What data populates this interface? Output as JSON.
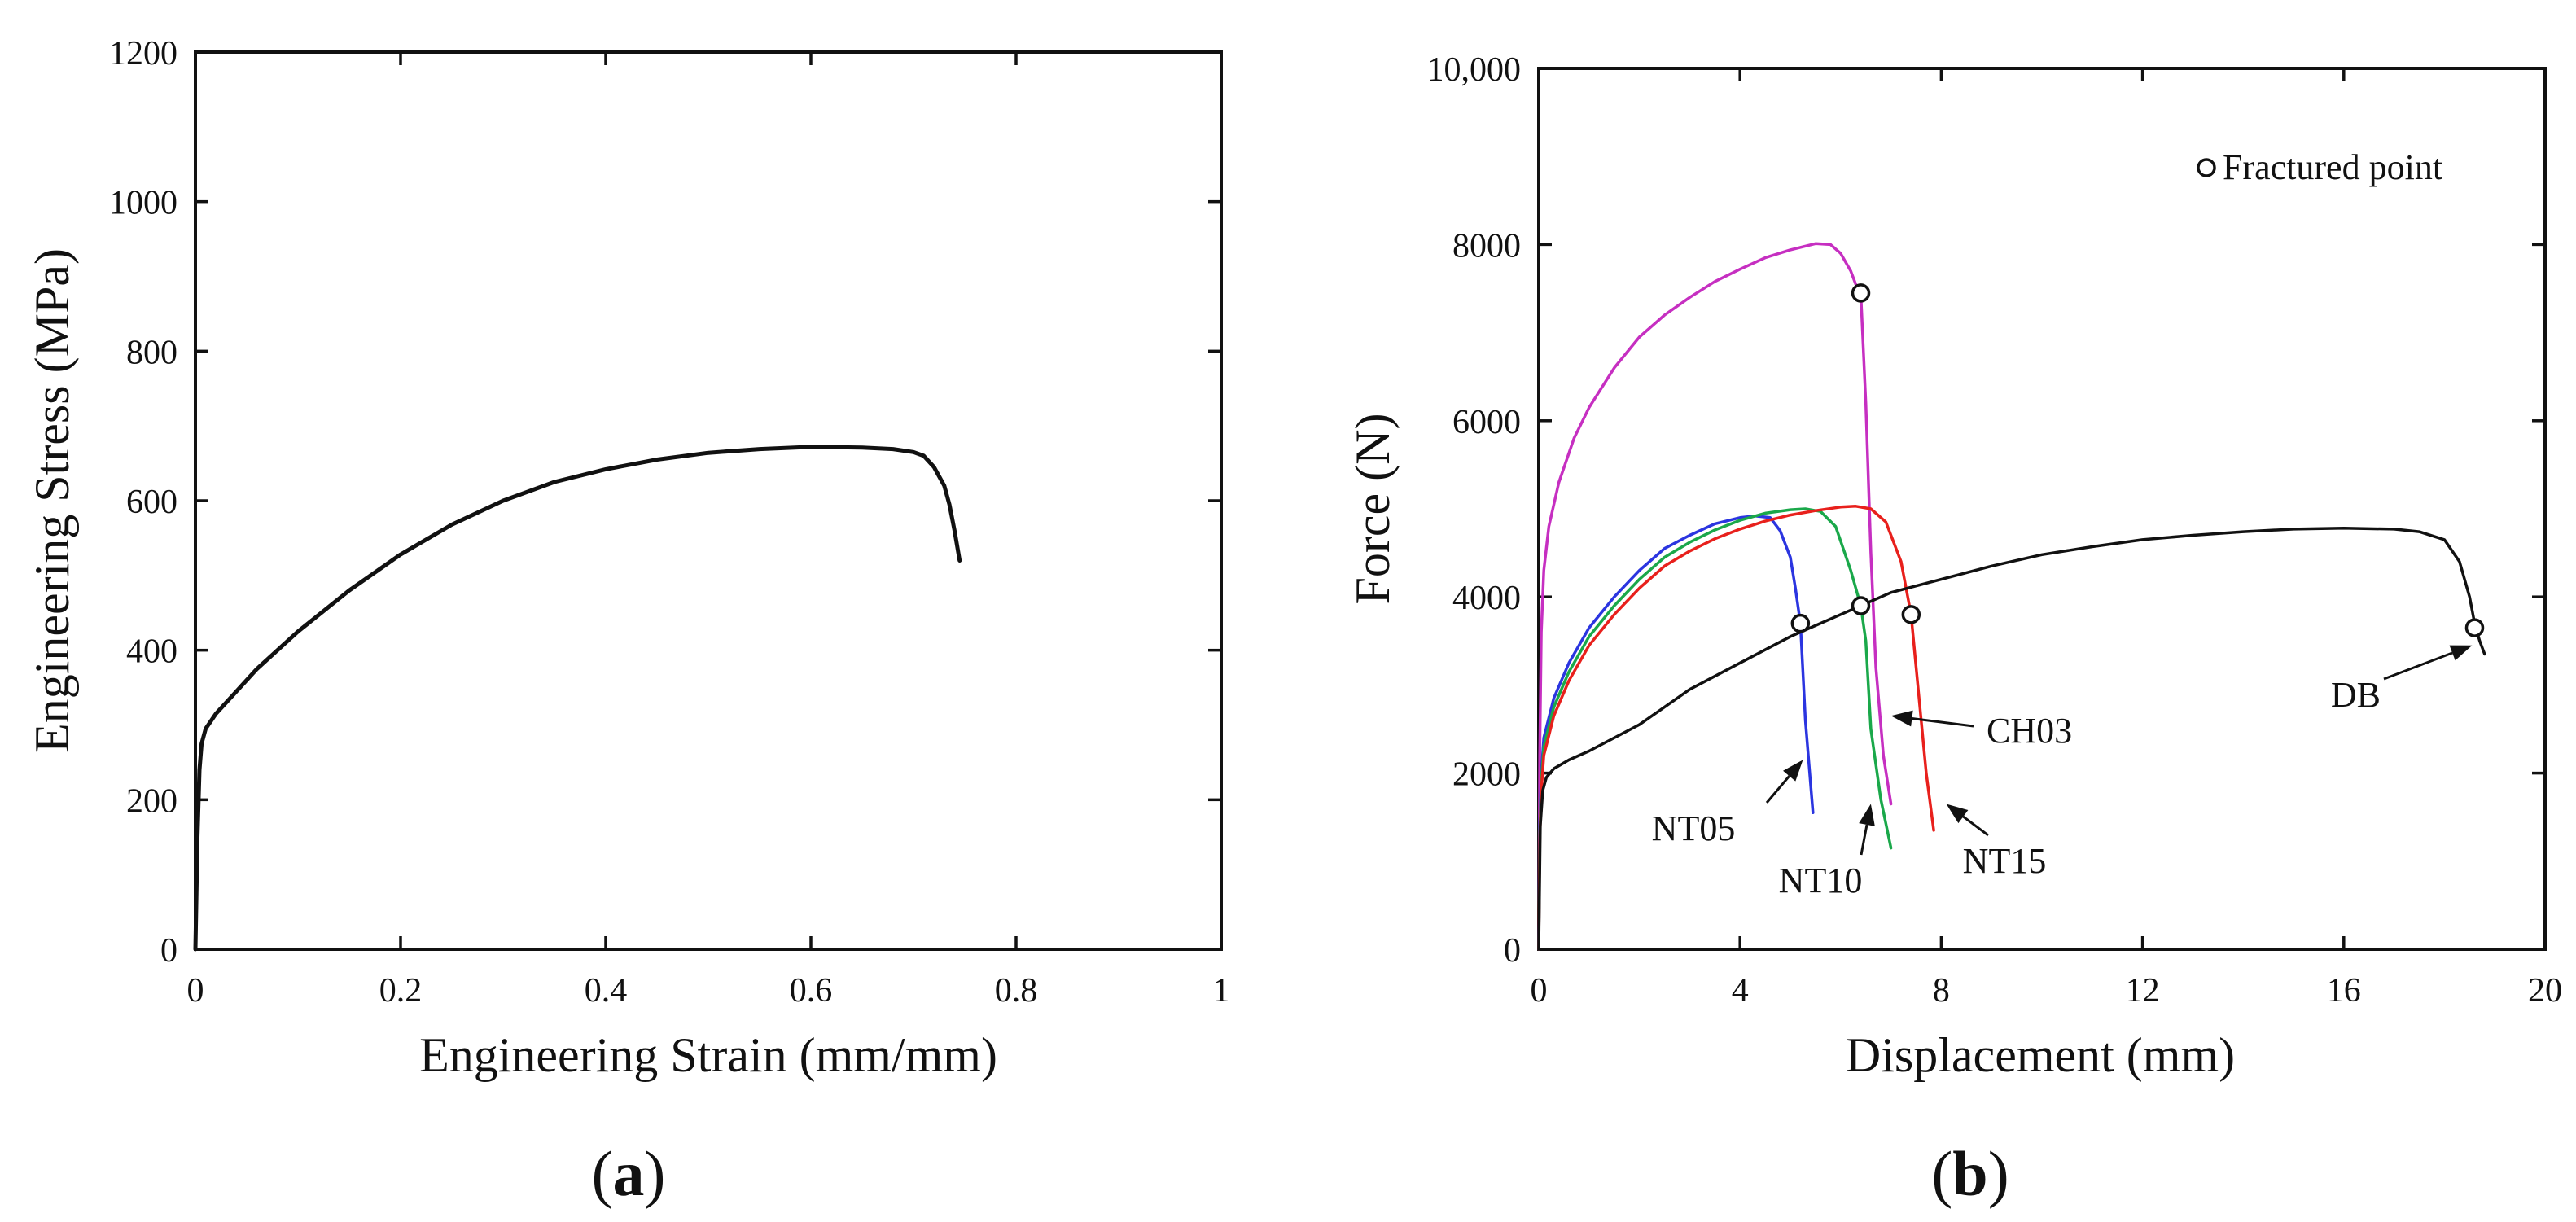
{
  "chart_data": [
    {
      "type": "line",
      "panel_label": "(a)",
      "panel_label_parts": [
        "(",
        "a",
        ")"
      ],
      "xlabel": "Engineering Strain (mm/mm)",
      "ylabel": "Engineering Stress (MPa)",
      "xlim": [
        0,
        1
      ],
      "ylim": [
        0,
        1200
      ],
      "xticks": [
        0,
        0.2,
        0.4,
        0.6,
        0.8,
        1
      ],
      "xtick_labels": [
        "0",
        "0.2",
        "0.4",
        "0.6",
        "0.8",
        "1"
      ],
      "yticks": [
        0,
        200,
        400,
        600,
        800,
        1000,
        1200
      ],
      "ytick_labels": [
        "0",
        "200",
        "400",
        "600",
        "800",
        "1000",
        "1200"
      ],
      "grid": false,
      "series": [
        {
          "name": "stress-strain",
          "color": "#111111",
          "x": [
            0,
            0.002,
            0.004,
            0.006,
            0.01,
            0.02,
            0.04,
            0.06,
            0.1,
            0.15,
            0.2,
            0.25,
            0.3,
            0.35,
            0.4,
            0.45,
            0.5,
            0.55,
            0.6,
            0.65,
            0.68,
            0.7,
            0.71,
            0.72,
            0.73,
            0.735,
            0.74,
            0.745
          ],
          "y": [
            0,
            150,
            240,
            275,
            295,
            315,
            345,
            375,
            425,
            480,
            528,
            568,
            600,
            625,
            642,
            655,
            664,
            669,
            672,
            671,
            669,
            665,
            660,
            645,
            620,
            595,
            560,
            520
          ]
        }
      ]
    },
    {
      "type": "line",
      "panel_label": "(b)",
      "panel_label_parts": [
        "(",
        "b",
        ")"
      ],
      "xlabel": "Displacement (mm)",
      "ylabel": "Force (N)",
      "xlim": [
        0,
        20
      ],
      "ylim": [
        0,
        10000
      ],
      "xticks": [
        0,
        4,
        8,
        12,
        16,
        20
      ],
      "xtick_labels": [
        "0",
        "4",
        "8",
        "12",
        "16",
        "20"
      ],
      "yticks": [
        0,
        2000,
        4000,
        6000,
        8000,
        10000
      ],
      "ytick_labels": [
        "0",
        "2000",
        "4000",
        "6000",
        "8000",
        "10,000"
      ],
      "grid": false,
      "legend": {
        "label": "Fractured point",
        "position": "top-right",
        "marker": "open-circle"
      },
      "series": [
        {
          "name": "CH03",
          "color": "#c62fc1",
          "x": [
            0,
            0.02,
            0.05,
            0.1,
            0.2,
            0.4,
            0.7,
            1,
            1.5,
            2,
            2.5,
            3,
            3.5,
            4,
            4.5,
            5,
            5.5,
            5.8,
            6,
            6.2,
            6.3,
            6.4,
            6.5,
            6.6,
            6.7,
            6.85,
            7.0
          ],
          "y": [
            0,
            2200,
            3600,
            4300,
            4800,
            5300,
            5800,
            6150,
            6600,
            6950,
            7200,
            7400,
            7580,
            7720,
            7850,
            7940,
            8010,
            8000,
            7900,
            7700,
            7550,
            7450,
            6200,
            4500,
            3200,
            2200,
            1650
          ]
        },
        {
          "name": "NT05",
          "color": "#2b35e0",
          "x": [
            0,
            0.02,
            0.05,
            0.1,
            0.3,
            0.6,
            1,
            1.5,
            2,
            2.5,
            3,
            3.5,
            4,
            4.3,
            4.6,
            4.8,
            5.0,
            5.1,
            5.2,
            5.3,
            5.45
          ],
          "y": [
            0,
            1400,
            2000,
            2400,
            2850,
            3250,
            3650,
            4000,
            4300,
            4550,
            4700,
            4830,
            4900,
            4920,
            4900,
            4750,
            4450,
            4100,
            3700,
            2600,
            1550
          ]
        },
        {
          "name": "NT10",
          "color": "#1aa84a",
          "x": [
            0,
            0.02,
            0.05,
            0.1,
            0.3,
            0.6,
            1,
            1.5,
            2,
            2.5,
            3,
            3.5,
            4,
            4.5,
            5,
            5.3,
            5.6,
            5.9,
            6.2,
            6.4,
            6.5,
            6.6,
            6.8,
            7.0
          ],
          "y": [
            0,
            1300,
            1900,
            2300,
            2750,
            3150,
            3550,
            3900,
            4200,
            4450,
            4620,
            4760,
            4870,
            4950,
            4990,
            5000,
            4970,
            4800,
            4300,
            3900,
            3500,
            2500,
            1700,
            1150
          ]
        },
        {
          "name": "NT15",
          "color": "#e8201c",
          "x": [
            0,
            0.02,
            0.05,
            0.1,
            0.3,
            0.6,
            1,
            1.5,
            2,
            2.5,
            3,
            3.5,
            4,
            4.5,
            5,
            5.5,
            6,
            6.3,
            6.6,
            6.9,
            7.2,
            7.4,
            7.5,
            7.7,
            7.85
          ],
          "y": [
            0,
            1200,
            1800,
            2200,
            2650,
            3050,
            3450,
            3800,
            4100,
            4350,
            4520,
            4660,
            4770,
            4860,
            4930,
            4980,
            5020,
            5030,
            5000,
            4850,
            4400,
            3800,
            3200,
            2000,
            1350
          ]
        },
        {
          "name": "DB",
          "color": "#111111",
          "x": [
            0,
            0.03,
            0.08,
            0.15,
            0.3,
            0.6,
            1,
            2,
            3,
            4,
            5,
            6,
            7,
            8,
            9,
            10,
            11,
            12,
            13,
            14,
            15,
            16,
            17,
            17.5,
            18,
            18.3,
            18.5,
            18.6,
            18.7,
            18.8
          ],
          "y": [
            0,
            1400,
            1800,
            1950,
            2050,
            2150,
            2250,
            2550,
            2950,
            3250,
            3550,
            3800,
            4050,
            4200,
            4350,
            4480,
            4570,
            4650,
            4700,
            4740,
            4770,
            4780,
            4770,
            4740,
            4650,
            4400,
            4000,
            3700,
            3500,
            3350
          ]
        }
      ],
      "fracture_points": [
        {
          "series": "CH03",
          "x": 6.4,
          "y": 7450
        },
        {
          "series": "NT05",
          "x": 5.2,
          "y": 3700
        },
        {
          "series": "NT10",
          "x": 6.4,
          "y": 3900
        },
        {
          "series": "NT15",
          "x": 7.4,
          "y": 3800
        },
        {
          "series": "DB",
          "x": 18.6,
          "y": 3650
        }
      ],
      "annotations": [
        {
          "text": "CH03",
          "arrow_to": [
            7.0,
            2650
          ]
        },
        {
          "text": "NT05",
          "arrow_to": [
            5.25,
            2150
          ]
        },
        {
          "text": "NT10",
          "arrow_to": [
            6.6,
            1650
          ]
        },
        {
          "text": "NT15",
          "arrow_to": [
            8.1,
            1650
          ]
        },
        {
          "text": "DB",
          "arrow_to": [
            18.55,
            3450
          ]
        }
      ]
    }
  ]
}
